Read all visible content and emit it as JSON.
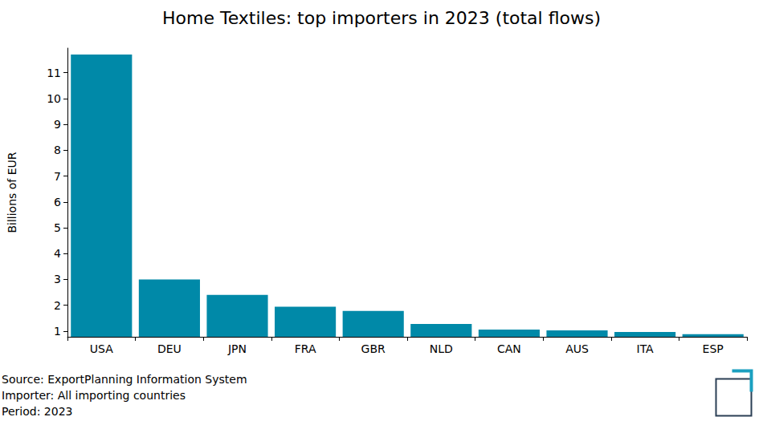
{
  "chart_data": {
    "type": "bar",
    "title": "Home Textiles: top importers in 2023 (total flows)",
    "y_label": "Billions of EUR",
    "categories": [
      "USA",
      "DEU",
      "JPN",
      "FRA",
      "GBR",
      "NLD",
      "CAN",
      "AUS",
      "ITA",
      "ESP"
    ],
    "values": [
      11.7,
      3.0,
      2.4,
      1.94,
      1.78,
      1.28,
      1.06,
      1.03,
      0.97,
      0.88
    ],
    "color": "#0089a8",
    "ylim": [
      0.78,
      11.95
    ],
    "yticks": [
      1,
      2,
      3,
      4,
      5,
      6,
      7,
      8,
      9,
      10,
      11
    ],
    "grid": false,
    "notes": [
      "Source: ExportPlanning Information System",
      "Importer: All importing countries",
      "Period: 2023"
    ]
  }
}
